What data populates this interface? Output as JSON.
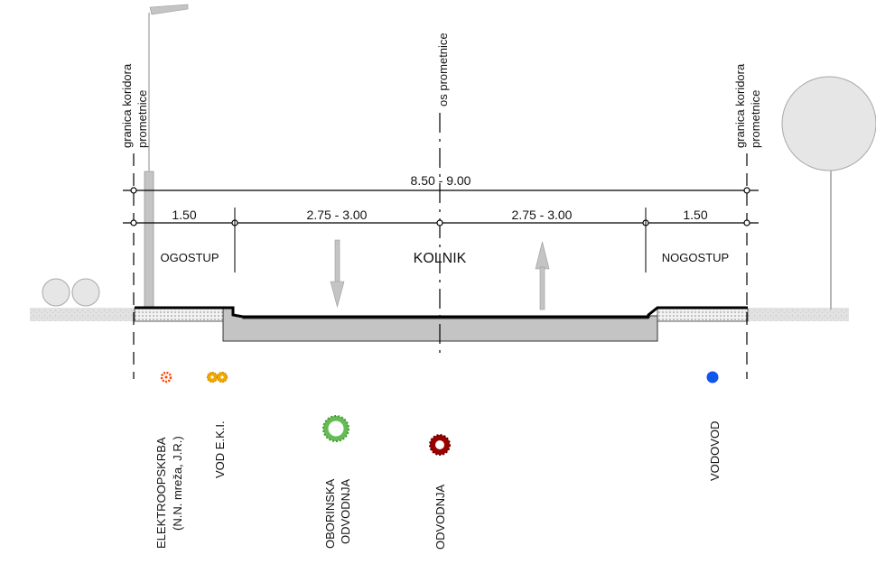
{
  "labels": {
    "corridor_left_1": "granica koridora",
    "corridor_left_2": "prometnice",
    "corridor_right_1": "granica koridora",
    "corridor_right_2": "prometnice",
    "axis": "os prometnice",
    "kolnik": "KOLNIK",
    "sidewalk_left": "OGOSTUP",
    "sidewalk_right": "NOGOSTUP"
  },
  "dimensions": {
    "total": "8.50 - 9.00",
    "left_sidewalk": "1.50",
    "left_lane": "2.75 - 3.00",
    "right_lane": "2.75 - 3.00",
    "right_sidewalk": "1.50"
  },
  "utilities": {
    "elektro_1": "ELEKTROOPSKRBA",
    "elektro_2": "(N.N. mreža, J.R.)",
    "eki": "VOD E.K.I.",
    "oborinska_1": "OBORINSKA",
    "oborinska_2": "ODVODNJA",
    "odvodnja": "ODVODNJA",
    "vodovod": "VODOVOD"
  },
  "colors": {
    "elektro": "#ff4400",
    "eki": "#f0a800",
    "oborinska": "#66bb55",
    "odvodnja": "#990000",
    "vodovod": "#1155ee",
    "asphalt": "#c8c8c8",
    "ground": "#e0e0e0"
  }
}
